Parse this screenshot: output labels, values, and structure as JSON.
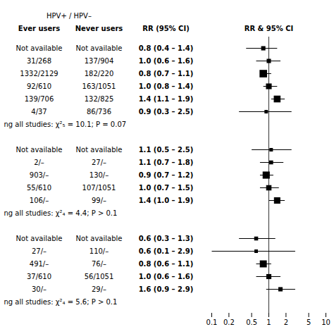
{
  "chart_data": {
    "type": "forest",
    "span_header": "HPV+ / HPV–",
    "column_headers": [
      "Ever users",
      "Never users",
      "RR (95% CI)"
    ],
    "forest_header": "RR & 95% CI",
    "log": "x",
    "xlim": [
      0.1,
      10
    ],
    "xticks": [
      0.1,
      0.2,
      0.5,
      1,
      2,
      5,
      10
    ],
    "reference": 1,
    "groups": [
      {
        "rows": [
          {
            "ever": "Not available",
            "never": "Not available",
            "label": "0.8 (0.4 – 1.4)",
            "rr": 0.8,
            "lo": 0.4,
            "hi": 1.4,
            "size": 18
          },
          {
            "ever": "31/268",
            "never": "137/904",
            "label": "1.0 (0.6 – 1.6)",
            "rr": 1.0,
            "lo": 0.6,
            "hi": 1.6,
            "size": 18
          },
          {
            "ever": "1332/2129",
            "never": "182/220",
            "label": "0.8 (0.7 – 1.1)",
            "rr": 0.8,
            "lo": 0.7,
            "hi": 1.1,
            "size": 55
          },
          {
            "ever": "92/610",
            "never": "163/1051",
            "label": "1.0 (0.8 – 1.4)",
            "rr": 1.0,
            "lo": 0.8,
            "hi": 1.4,
            "size": 32
          },
          {
            "ever": "139/706",
            "never": "132/825",
            "label": "1.4 (1.1 – 1.9)",
            "rr": 1.4,
            "lo": 1.1,
            "hi": 1.9,
            "size": 45
          },
          {
            "ever": "4/37",
            "never": "86/736",
            "label": "0.9 (0.3 – 2.5)",
            "rr": 0.9,
            "lo": 0.3,
            "hi": 2.5,
            "size": 12
          }
        ],
        "chi2_text": "ng all studies: χ²₅ = 10.1; P = 0.07"
      },
      {
        "rows": [
          {
            "ever": "Not available",
            "never": "Not available",
            "label": "1.1 (0.5 – 2.5)",
            "rr": 1.1,
            "lo": 0.5,
            "hi": 2.5,
            "size": 12
          },
          {
            "ever": "2/–",
            "never": "27/–",
            "label": "1.1 (0.7 – 1.8)",
            "rr": 1.1,
            "lo": 0.7,
            "hi": 1.8,
            "size": 15
          },
          {
            "ever": "903/–",
            "never": "130/–",
            "label": "0.9 (0.7 – 1.2)",
            "rr": 0.9,
            "lo": 0.7,
            "hi": 1.2,
            "size": 50
          },
          {
            "ever": "55/610",
            "never": "107/1051",
            "label": "1.0 (0.7 – 1.5)",
            "rr": 1.0,
            "lo": 0.7,
            "hi": 1.5,
            "size": 28
          },
          {
            "ever": "106/–",
            "never": "99/–",
            "label": "1.4 (1.0 – 1.9)",
            "rr": 1.4,
            "lo": 1.0,
            "hi": 1.9,
            "size": 40
          }
        ],
        "chi2_text": "ng all studies: χ²₄ = 4.4; P > 0.1"
      },
      {
        "rows": [
          {
            "ever": "Not available",
            "never": "Not available",
            "label": "0.6 (0.3 – 1.3)",
            "rr": 0.6,
            "lo": 0.3,
            "hi": 1.3,
            "size": 15
          },
          {
            "ever": "27/–",
            "never": "110/–",
            "label": "0.6 (0.1 – 2.9)",
            "rr": 0.6,
            "lo": 0.1,
            "hi": 2.9,
            "size": 12
          },
          {
            "ever": "491/–",
            "never": "76/–",
            "label": "0.8 (0.6 – 1.1)",
            "rr": 0.8,
            "lo": 0.6,
            "hi": 1.1,
            "size": 48
          },
          {
            "ever": "37/610",
            "never": "56/1051",
            "label": "1.0 (0.6 – 1.6)",
            "rr": 1.0,
            "lo": 0.6,
            "hi": 1.6,
            "size": 25
          },
          {
            "ever": "30/–",
            "never": "29/–",
            "label": "1.6 (0.9 – 2.9)",
            "rr": 1.6,
            "lo": 0.9,
            "hi": 2.9,
            "size": 18
          }
        ],
        "chi2_text": "ng all studies: χ²₄ = 5.6; P > 0.1"
      }
    ]
  }
}
